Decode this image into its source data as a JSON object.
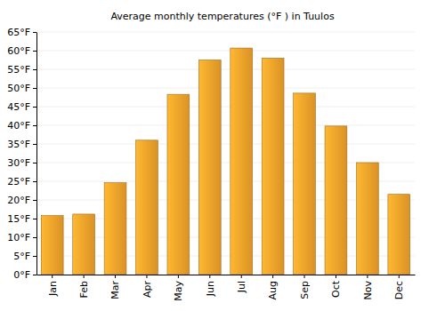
{
  "chart_data": {
    "type": "bar",
    "title": "Average monthly temperatures (°F ) in Tuulos",
    "categories": [
      "Jan",
      "Feb",
      "Mar",
      "Apr",
      "May",
      "Jun",
      "Jul",
      "Aug",
      "Sep",
      "Oct",
      "Nov",
      "Dec"
    ],
    "values": [
      15.8,
      16.2,
      24.6,
      36.0,
      48.3,
      57.5,
      60.7,
      58.0,
      48.6,
      39.8,
      30.0,
      21.5
    ],
    "color": "#f7a52b",
    "ylim": [
      0,
      65
    ],
    "yticks": [
      {
        "value": 0,
        "label": "0°F"
      },
      {
        "value": 5,
        "label": "5°F"
      },
      {
        "value": 10,
        "label": "10°F"
      },
      {
        "value": 15,
        "label": "15°F"
      },
      {
        "value": 20,
        "label": "20°F"
      },
      {
        "value": 25,
        "label": "25°F"
      },
      {
        "value": 30,
        "label": "30°F"
      },
      {
        "value": 35,
        "label": "35°F"
      },
      {
        "value": 40,
        "label": "40°F"
      },
      {
        "value": 45,
        "label": "45°F"
      },
      {
        "value": 50,
        "label": "50°F"
      },
      {
        "value": 55,
        "label": "55°F"
      },
      {
        "value": 60,
        "label": "60°F"
      },
      {
        "value": 65,
        "label": "65°F"
      }
    ],
    "grid": true
  }
}
